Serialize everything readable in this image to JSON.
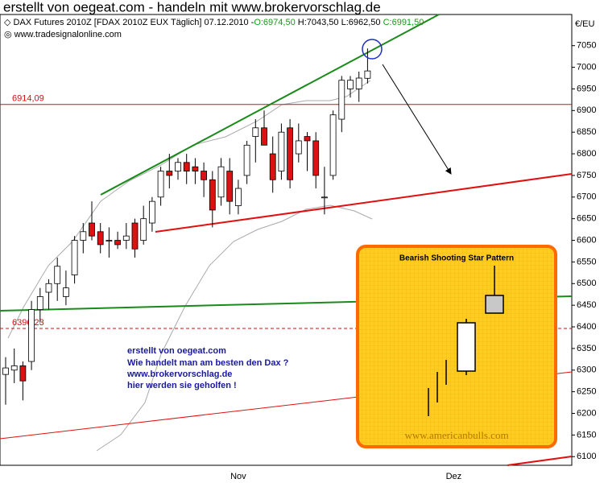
{
  "chart_data": {
    "type": "candlestick",
    "title": "erstellt von oegeat.com - handeln mit www.brokervorschlag.de",
    "instrument": "DAX Futures 2010Z [FDAX 2010Z EUX  Täglich] 07.12.2010 -",
    "ohlc_labels": [
      "O:6974,50",
      "H:7043,50",
      "L:6962,50",
      "C:6991,50"
    ],
    "source": "www.tradesignalonline.com",
    "y_unit": "€/EU",
    "categories": [
      null,
      null,
      null,
      null,
      null,
      null,
      null,
      null,
      null,
      null,
      null,
      null,
      null,
      null,
      null,
      null,
      null,
      null,
      null,
      null,
      null,
      null,
      null,
      null,
      null,
      null,
      null,
      "Nov",
      null,
      null,
      null,
      null,
      null,
      null,
      null,
      null,
      null,
      null,
      null,
      null,
      null,
      null,
      null,
      null,
      null,
      null,
      null,
      null,
      null,
      null,
      null,
      null,
      "Dez",
      null,
      null,
      null,
      null,
      null,
      null,
      null,
      null,
      null,
      null,
      null,
      null,
      null
    ],
    "open": [
      6290,
      6300,
      6310,
      6320,
      6440,
      6480,
      6500,
      6470,
      6520,
      6600,
      6640,
      6620,
      6600,
      6600,
      6600,
      6640,
      6600,
      6640,
      6700,
      6760,
      6760,
      6780,
      6770,
      6760,
      6740,
      6700,
      6760,
      6680,
      6750,
      6840,
      6860,
      6800,
      6760,
      6860,
      6800,
      6840,
      6830,
      6700,
      6750,
      6880,
      6950,
      6950,
      6974.5,
      null,
      null,
      null,
      null,
      null,
      null,
      null,
      null,
      null,
      null,
      null,
      null,
      null,
      null,
      null,
      null,
      null,
      null,
      null,
      null,
      null,
      null,
      null
    ],
    "high": [
      6330,
      6350,
      6320,
      6460,
      6490,
      6510,
      6560,
      6530,
      6610,
      6640,
      6690,
      6640,
      6630,
      6620,
      6640,
      6650,
      6680,
      6700,
      6770,
      6800,
      6790,
      6800,
      6790,
      6780,
      6760,
      6790,
      6790,
      6740,
      6830,
      6880,
      6900,
      6840,
      6870,
      6880,
      6870,
      6850,
      6850,
      6770,
      6900,
      6980,
      6980,
      6990,
      7043.5,
      null,
      null,
      null,
      null,
      null,
      null,
      null,
      null,
      null,
      null,
      null,
      null,
      null,
      null,
      null,
      null,
      null,
      null,
      null,
      null,
      null,
      null,
      null
    ],
    "low": [
      6220,
      6270,
      6230,
      6300,
      6410,
      6440,
      6460,
      6450,
      6500,
      6570,
      6600,
      6570,
      6560,
      6580,
      6580,
      6560,
      6590,
      6620,
      6680,
      6720,
      6740,
      6730,
      6730,
      6700,
      6630,
      6680,
      6660,
      6660,
      6730,
      6780,
      6830,
      6710,
      6740,
      6720,
      6780,
      6760,
      6720,
      6660,
      6740,
      6850,
      6930,
      6920,
      6962.5,
      null,
      null,
      null,
      null,
      null,
      null,
      null,
      null,
      null,
      null,
      null,
      null,
      null,
      null,
      null,
      null,
      null,
      null,
      null,
      null,
      null,
      null,
      null
    ],
    "close": [
      6305,
      6310,
      6275,
      6440,
      6470,
      6500,
      6540,
      6490,
      6600,
      6620,
      6610,
      6590,
      6600,
      6590,
      6610,
      6580,
      6650,
      6690,
      6760,
      6750,
      6780,
      6760,
      6760,
      6740,
      6670,
      6770,
      6690,
      6720,
      6820,
      6860,
      6820,
      6740,
      6850,
      6740,
      6830,
      6830,
      6750,
      6700,
      6890,
      6970,
      6970,
      6975,
      6991.5,
      null,
      null,
      null,
      null,
      null,
      null,
      null,
      null,
      null,
      null,
      null,
      null,
      null,
      null,
      null,
      null,
      null,
      null,
      null,
      null,
      null,
      null,
      null
    ],
    "up_color": "#ffffff",
    "down_color": "#dd1111",
    "ylim": [
      6080,
      7122
    ],
    "yticks": [
      6100,
      6150,
      6200,
      6250,
      6300,
      6350,
      6400,
      6450,
      6500,
      6550,
      6600,
      6650,
      6700,
      6750,
      6800,
      6850,
      6900,
      6950,
      7000,
      7050
    ],
    "hlines": [
      {
        "value": 6914.09,
        "label": "6914,09",
        "dashed": false
      },
      {
        "value": 6396.23,
        "label": "6396,23",
        "dashed": true
      }
    ],
    "annotation": [
      "erstellt von oegeat.com",
      "Wie handelt man am besten den Dax ?",
      "www.brokervorschlag.de",
      "hier werden sie geholfen !"
    ],
    "inset": {
      "title": "Bearish Shooting Star Pattern",
      "watermark": "www.americanbulls.com"
    }
  }
}
